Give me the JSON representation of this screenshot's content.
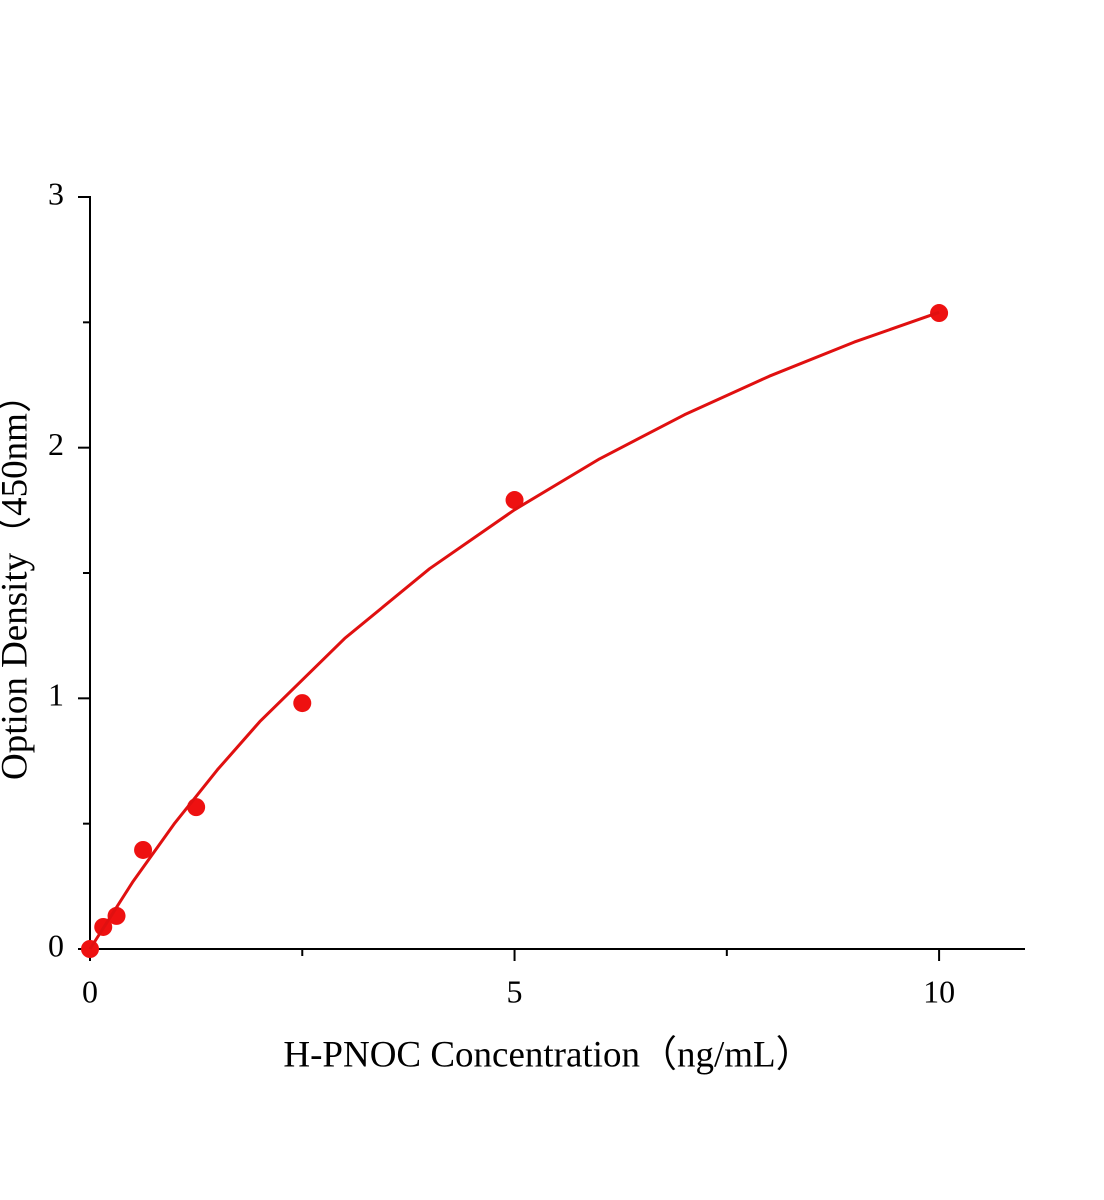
{
  "chart_data": {
    "type": "scatter",
    "x_label": "H-PNOC Concentration（ng/mL）",
    "y_label": "Option Density（450nm）",
    "series": [
      {
        "type": "scatter",
        "color": "#ee1111",
        "x": [
          0,
          0.156,
          0.3125,
          0.625,
          1.25,
          2.5,
          5,
          10
        ],
        "values": [
          0,
          0.088,
          0.132,
          0.395,
          0.566,
          0.981,
          1.791,
          2.537
        ]
      },
      {
        "type": "line",
        "color": "#e01010",
        "x": [
          0,
          0.5,
          1,
          1.5,
          2,
          3,
          4,
          5,
          6,
          7,
          8,
          9,
          10
        ],
        "values": [
          0,
          0.266,
          0.503,
          0.715,
          0.907,
          1.239,
          1.517,
          1.752,
          1.955,
          2.131,
          2.285,
          2.421,
          2.54
        ]
      }
    ],
    "xlim": [
      0,
      11
    ],
    "ylim": [
      0,
      3
    ],
    "xticks": [
      0,
      5,
      10
    ],
    "yticks": [
      0,
      1,
      2,
      3
    ],
    "xminorticks": [
      2.5,
      7.5
    ],
    "yminorticks": [
      0.5,
      1.5,
      2.5
    ],
    "grid": false
  }
}
